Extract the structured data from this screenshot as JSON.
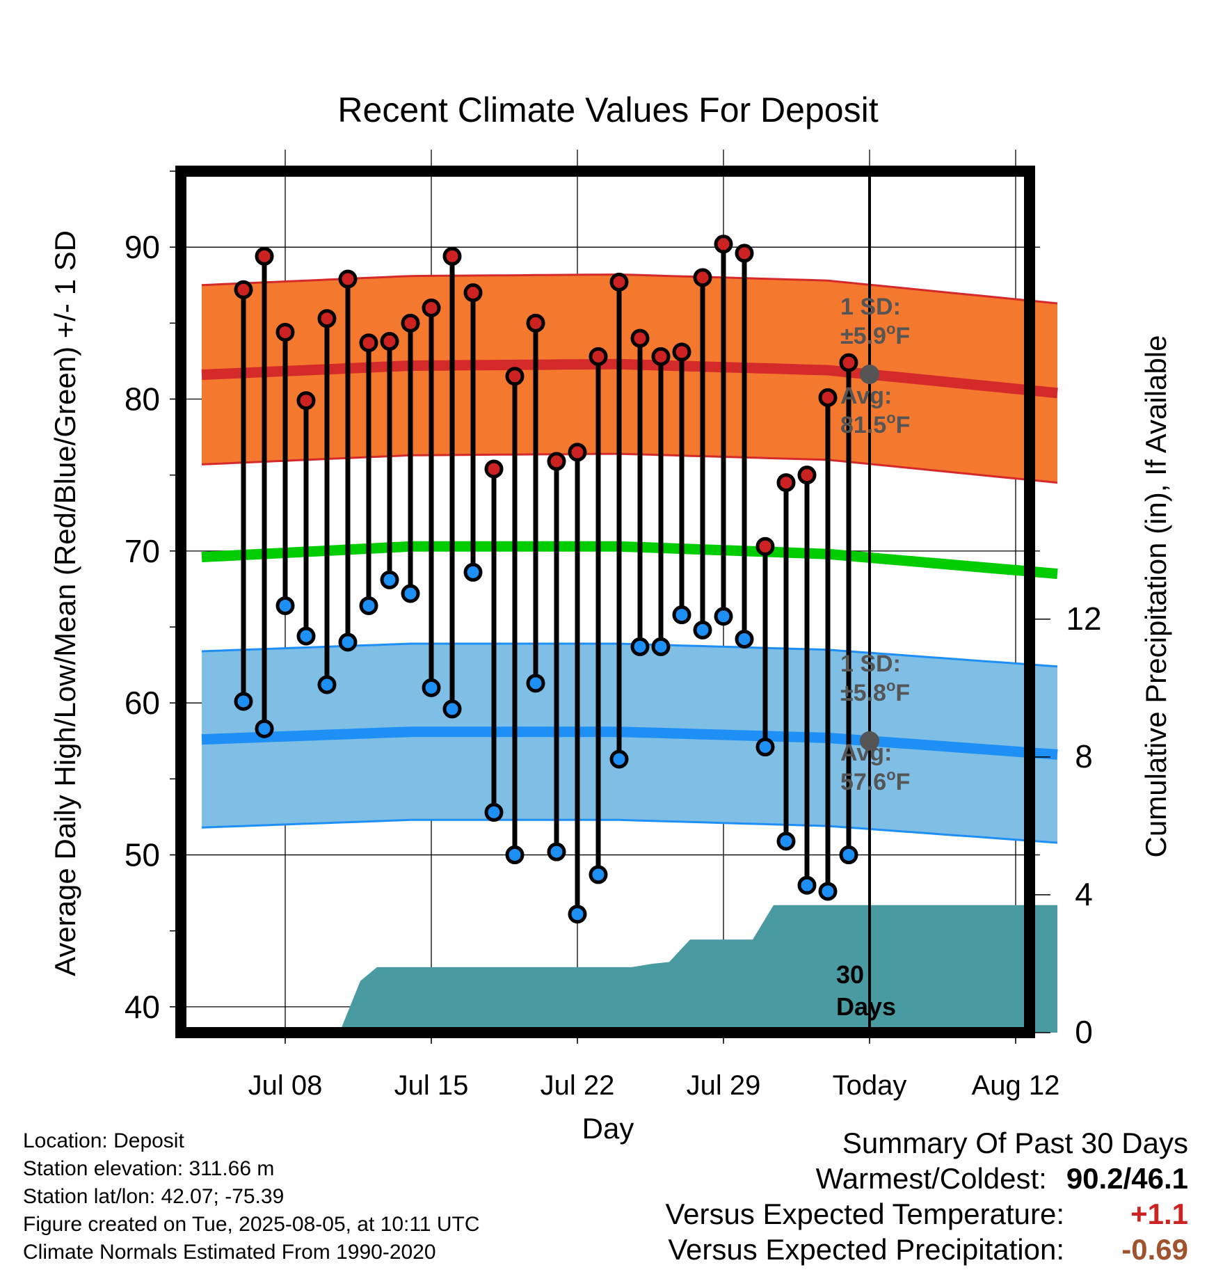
{
  "chart_data": {
    "type": "line",
    "title": "Recent Climate Values For Deposit",
    "xlabel": "Day",
    "ylabel_left": "Average Daily High/Low/Mean (Red/Blue/Green) +/- 1 SD",
    "ylabel_right": "Cumulative Precipitation (in), If Available",
    "ylim": [
      38.3,
      95
    ],
    "y_ticks": [
      40,
      50,
      60,
      70,
      80,
      90
    ],
    "y2lim": [
      0,
      25
    ],
    "y2_ticks": [
      0,
      4,
      8,
      12
    ],
    "x_ticks": [
      "Jul 08",
      "Jul 15",
      "Jul 22",
      "Jul 29",
      "Today",
      "Aug 12"
    ],
    "grid": true,
    "days": [
      "Jul 06",
      "Jul 07",
      "Jul 08",
      "Jul 09",
      "Jul 10",
      "Jul 11",
      "Jul 12",
      "Jul 13",
      "Jul 14",
      "Jul 15",
      "Jul 16",
      "Jul 17",
      "Jul 18",
      "Jul 19",
      "Jul 20",
      "Jul 21",
      "Jul 22",
      "Jul 23",
      "Jul 24",
      "Jul 25",
      "Jul 26",
      "Jul 27",
      "Jul 28",
      "Jul 29",
      "Jul 30",
      "Jul 31",
      "Aug 01",
      "Aug 02",
      "Aug 03",
      "Aug 04"
    ],
    "highs": [
      87.2,
      89.4,
      84.4,
      79.9,
      85.3,
      87.9,
      83.7,
      83.8,
      85.0,
      86.0,
      89.4,
      87.0,
      75.4,
      81.5,
      85.0,
      75.9,
      76.5,
      82.8,
      87.7,
      84.0,
      82.8,
      83.1,
      88.0,
      90.2,
      89.6,
      70.3,
      74.5,
      75.0,
      80.1,
      82.4
    ],
    "lows": [
      60.1,
      58.3,
      66.4,
      64.4,
      61.2,
      64.0,
      66.4,
      68.1,
      67.2,
      61.0,
      59.6,
      68.6,
      52.8,
      50.0,
      61.3,
      50.2,
      46.1,
      48.7,
      56.3,
      63.7,
      63.7,
      65.8,
      64.8,
      65.7,
      64.2,
      57.1,
      50.9,
      48.0,
      47.6,
      50.0
    ],
    "series": [
      {
        "name": "High",
        "color": "#d42a2a",
        "band_color": "#f5782f",
        "avg_x": [
          -2,
          8,
          18,
          28,
          39
        ],
        "avg_y": [
          81.6,
          82.2,
          82.3,
          81.9,
          80.4
        ],
        "sd": 5.9
      },
      {
        "name": "Mean",
        "color": "#00cc00",
        "avg_x": [
          -2,
          8,
          18,
          28,
          39
        ],
        "avg_y": [
          69.6,
          70.3,
          70.3,
          69.8,
          68.5
        ]
      },
      {
        "name": "Low",
        "color": "#1e8ff5",
        "band_color": "#7fbfe6",
        "avg_x": [
          -2,
          8,
          18,
          28,
          39
        ],
        "avg_y": [
          57.6,
          58.1,
          58.1,
          57.7,
          56.6
        ],
        "sd": 5.8
      }
    ],
    "precip_color": "#4a9aa1",
    "precip_cumulative": {
      "x": [
        4.6,
        5.6,
        6.4,
        18.6,
        19.6,
        20.4,
        21.4,
        22.4,
        23.4,
        24.4,
        25.4,
        26.4,
        27.4,
        28.4,
        39
      ],
      "y": [
        0,
        1.5,
        1.9,
        1.9,
        2.0,
        2.05,
        2.7,
        2.7,
        2.7,
        2.7,
        3.7,
        3.7,
        3.7,
        3.7,
        3.7
      ]
    },
    "today_index": 30,
    "annotations": {
      "high_sd_line1": "1 SD:",
      "high_sd_line2": "±5.9",
      "high_avg_line1": "Avg:",
      "high_avg_line2": "81.5",
      "low_sd_line1": "1 SD:",
      "low_sd_line2": "±5.8",
      "low_avg_line1": "Avg:",
      "low_avg_line2": "57.6",
      "degree_unit": "o",
      "unit_letter": "F",
      "days_line1": "30",
      "days_line2": "Days"
    }
  },
  "info": {
    "location": "Location: Deposit",
    "elevation": "Station elevation: 311.66 m",
    "latlon": "Station lat/lon: 42.07; -75.39",
    "created": "Figure created on Tue, 2025-08-05, at 10:11 UTC",
    "normals": "Climate Normals Estimated From 1990-2020"
  },
  "summary": {
    "title": "Summary Of Past 30 Days",
    "warm_cold_label": "Warmest/Coldest:",
    "warm_cold_value": "90.2/46.1",
    "temp_label": "Versus Expected Temperature:",
    "temp_value": "+1.1",
    "temp_color": "#cc2222",
    "precip_label": "Versus Expected Precipitation:",
    "precip_value": "-0.69",
    "precip_color": "#a0522d"
  }
}
